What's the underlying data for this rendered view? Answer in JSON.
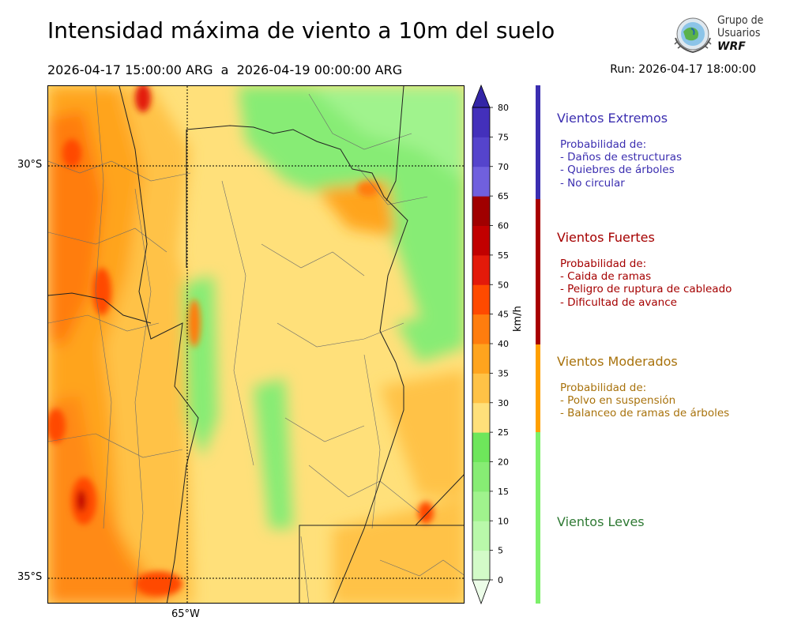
{
  "header": {
    "title": "Intensidad máxima de viento a 10m del suelo",
    "period": "2026-04-17 15:00:00 ARG  a  2026-04-19 00:00:00 ARG",
    "run": "Run: 2026-04-17 18:00:00"
  },
  "logo": {
    "line1": "Grupo de",
    "line2": "Usuarios",
    "line3": "WRF"
  },
  "map": {
    "lat_labels": [
      "30°S",
      "35°S"
    ],
    "lon_labels": [
      "65°W"
    ]
  },
  "colorbar": {
    "unit": "km/h",
    "ticks": [
      "0",
      "5",
      "10",
      "15",
      "20",
      "25",
      "30",
      "35",
      "40",
      "45",
      "50",
      "55",
      "60",
      "65",
      "70",
      "75",
      "80"
    ],
    "colors": [
      "#ecfde8",
      "#d3fbc8",
      "#b9f8aa",
      "#a0f38d",
      "#87ec74",
      "#6ee65b",
      "#ffe07a",
      "#ffc246",
      "#ffa41e",
      "#ff7d0e",
      "#ff4a00",
      "#e31a0a",
      "#c10000",
      "#a00000",
      "#7060de",
      "#5544cc",
      "#4330bb",
      "#3325a6"
    ]
  },
  "categories": [
    {
      "title": "Vientos Extremos",
      "color": "#3b2eb0",
      "bar_color": "#3b2eb0",
      "heading": "Probabilidad de:",
      "items": [
        "- Daños de estructuras",
        "- Quiebres de árboles",
        "- No circular"
      ]
    },
    {
      "title": "Vientos Fuertes",
      "color": "#a50000",
      "bar_color": "#a80000",
      "heading": "Probabilidad de:",
      "items": [
        "- Caida de ramas",
        "- Peligro de ruptura de cableado",
        "- Dificultad de avance"
      ]
    },
    {
      "title": "Vientos Moderados",
      "color": "#a8720c",
      "bar_color": "#ffa000",
      "heading": "Probabilidad de:",
      "items": [
        "- Polvo en suspensión",
        "- Balanceo de ramas de árboles"
      ]
    },
    {
      "title": "Vientos Leves",
      "color": "#2f7a34",
      "bar_color": "#7cf06a"
    }
  ]
}
